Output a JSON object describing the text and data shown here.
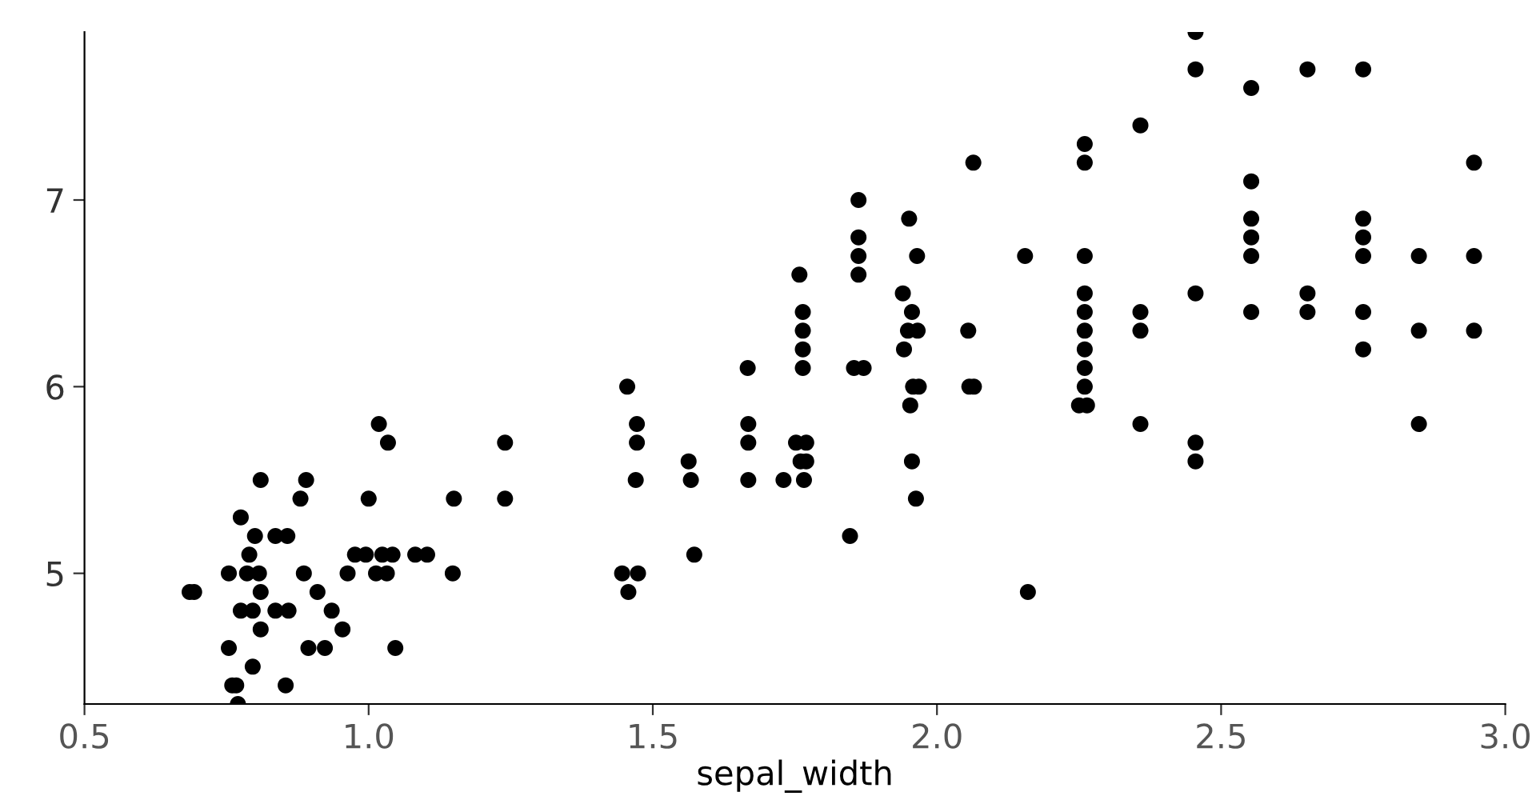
{
  "chart_data": {
    "type": "scatter",
    "xlabel": "sepal_width",
    "xlim": [
      0.5,
      3.0
    ],
    "xticks": [
      {
        "value": 0.5,
        "label": "0.5"
      },
      {
        "value": 1.0,
        "label": "1.0"
      },
      {
        "value": 1.5,
        "label": "1.5"
      },
      {
        "value": 2.0,
        "label": "2.0"
      },
      {
        "value": 2.5,
        "label": "2.5"
      },
      {
        "value": 3.0,
        "label": "3.0"
      }
    ],
    "ylim": [
      4.3,
      7.9
    ],
    "yticks": [
      5,
      6,
      7
    ],
    "grid": false,
    "marker": "circle",
    "series": [
      {
        "color": "#000000",
        "x": [
          0.685,
          0.693,
          0.81,
          0.89,
          0.88,
          1.0,
          1.15,
          1.24,
          0.775,
          0.8,
          0.836,
          0.857,
          0.79,
          0.976,
          0.995,
          1.024,
          1.042,
          1.082,
          1.103,
          0.754,
          0.786,
          0.807,
          0.886,
          0.963,
          1.013,
          1.032,
          1.148,
          0.81,
          0.91,
          0.775,
          0.796,
          0.836,
          0.859,
          0.935,
          0.81,
          0.954,
          0.754,
          0.894,
          0.923,
          1.047,
          0.796,
          0.76,
          0.767,
          0.854,
          0.77,
          1.018,
          1.034,
          1.24,
          1.455,
          1.472,
          1.472,
          1.47,
          1.446,
          1.474,
          1.457,
          1.563,
          1.567,
          1.573,
          1.667,
          1.668,
          1.668,
          1.668,
          1.73,
          1.758,
          1.764,
          1.764,
          1.764,
          1.764,
          1.752,
          1.77,
          1.76,
          1.77,
          1.766,
          1.847,
          1.862,
          1.862,
          1.862,
          1.862,
          1.854,
          1.871,
          1.951,
          1.965,
          1.94,
          1.956,
          1.949,
          1.966,
          1.942,
          1.958,
          1.968,
          1.953,
          1.956,
          1.963,
          2.064,
          2.055,
          2.057,
          2.065,
          2.16,
          2.455,
          2.455,
          2.553,
          2.652,
          2.75,
          2.358,
          2.26,
          2.26,
          2.945,
          2.553,
          2.553,
          2.553,
          2.553,
          2.75,
          2.75,
          2.75,
          2.155,
          2.26,
          2.848,
          2.945,
          2.26,
          2.26,
          2.26,
          2.26,
          2.26,
          2.26,
          2.25,
          2.264,
          2.358,
          2.358,
          2.455,
          2.553,
          2.652,
          2.652,
          2.75,
          2.75,
          2.848,
          2.945,
          2.358,
          2.848,
          2.455,
          2.455
        ],
        "values": [
          4.9,
          4.9,
          5.5,
          5.5,
          5.4,
          5.4,
          5.4,
          5.4,
          5.3,
          5.2,
          5.2,
          5.2,
          5.1,
          5.1,
          5.1,
          5.1,
          5.1,
          5.1,
          5.1,
          5.0,
          5.0,
          5.0,
          5.0,
          5.0,
          5.0,
          5.0,
          5.0,
          4.9,
          4.9,
          4.8,
          4.8,
          4.8,
          4.8,
          4.8,
          4.7,
          4.7,
          4.6,
          4.6,
          4.6,
          4.6,
          4.5,
          4.4,
          4.4,
          4.4,
          4.3,
          5.8,
          5.7,
          5.7,
          6.0,
          5.8,
          5.7,
          5.5,
          5.0,
          5.0,
          4.9,
          5.6,
          5.5,
          5.1,
          6.1,
          5.8,
          5.7,
          5.5,
          5.5,
          6.6,
          6.4,
          6.3,
          6.2,
          6.1,
          5.7,
          5.7,
          5.6,
          5.6,
          5.5,
          5.2,
          7.0,
          6.8,
          6.7,
          6.6,
          6.1,
          6.1,
          6.9,
          6.7,
          6.5,
          6.4,
          6.3,
          6.3,
          6.2,
          6.0,
          6.0,
          5.9,
          5.6,
          5.4,
          7.2,
          6.3,
          6.0,
          6.0,
          4.9,
          7.9,
          7.7,
          7.6,
          7.7,
          7.7,
          7.4,
          7.3,
          7.2,
          7.2,
          7.1,
          6.9,
          6.8,
          6.7,
          6.9,
          6.8,
          6.7,
          6.7,
          6.7,
          6.7,
          6.7,
          6.5,
          6.4,
          6.3,
          6.2,
          6.1,
          6.0,
          5.9,
          5.9,
          6.4,
          6.3,
          6.5,
          6.4,
          6.5,
          6.4,
          6.4,
          6.2,
          6.3,
          6.3,
          5.8,
          5.8,
          5.7,
          5.6
        ]
      }
    ]
  }
}
